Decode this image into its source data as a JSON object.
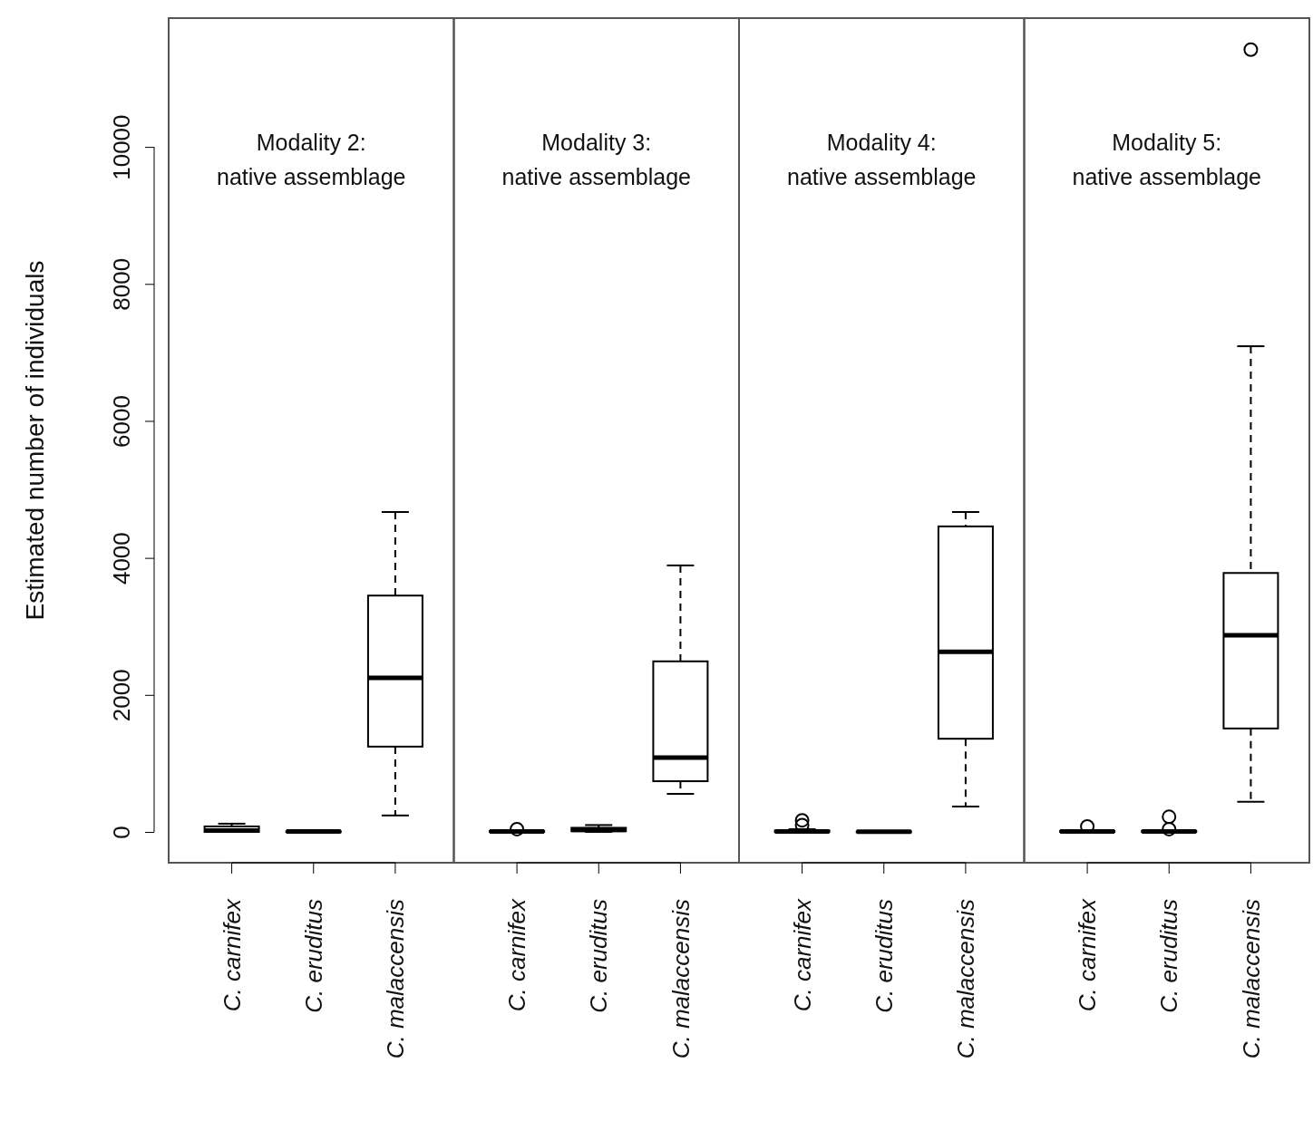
{
  "chart_data": [
    {
      "type": "box",
      "ylabel": "Estimated number of individuals",
      "categories": [
        "C. carnifex",
        "C. eruditus",
        "C. malaccensis"
      ],
      "ylim": [
        -450,
        11880
      ],
      "yticks": [
        0,
        2000,
        4000,
        6000,
        8000,
        10000
      ],
      "annotations": [
        "Modality 2:",
        "native assemblage"
      ],
      "boxes": [
        {
          "low": 0,
          "q1": 0,
          "median": 20,
          "q3": 80,
          "high": 120
        },
        {
          "low": 0,
          "q1": 0,
          "median": 5,
          "q3": 10,
          "high": 15
        },
        {
          "low": 240,
          "q1": 1245,
          "median": 2250,
          "q3": 3450,
          "high": 4670
        }
      ]
    },
    {
      "type": "box",
      "categories": [
        "C. carnifex",
        "C. eruditus",
        "C. malaccensis"
      ],
      "ylim": [
        -450,
        11880
      ],
      "tick_labels": "x",
      "annotations": [
        "Modality 3:",
        "native assemblage"
      ],
      "boxes": [
        {
          "low": 0,
          "q1": 0,
          "median": 5,
          "q3": 15,
          "high": 20,
          "outliers": [
            40
          ]
        },
        {
          "low": 0,
          "q1": 10,
          "median": 30,
          "q3": 60,
          "high": 100
        },
        {
          "low": 555,
          "q1": 740,
          "median": 1085,
          "q3": 2490,
          "high": 3890
        }
      ]
    },
    {
      "type": "box",
      "categories": [
        "C. carnifex",
        "C. eruditus",
        "C. malaccensis"
      ],
      "ylim": [
        -450,
        11880
      ],
      "tick_labels": "x",
      "annotations": [
        "Modality 4:",
        "native assemblage"
      ],
      "boxes": [
        {
          "low": 0,
          "q1": 0,
          "median": 5,
          "q3": 20,
          "high": 40,
          "outliers": [
            100,
            170
          ]
        },
        {
          "low": 0,
          "q1": 0,
          "median": 3,
          "q3": 8,
          "high": 12
        },
        {
          "low": 370,
          "q1": 1360,
          "median": 2630,
          "q3": 4460,
          "high": 4670
        }
      ]
    },
    {
      "type": "box",
      "categories": [
        "C. carnifex",
        "C. eruditus",
        "C. malaccensis"
      ],
      "ylim": [
        -450,
        11880
      ],
      "tick_labels": "x",
      "annotations": [
        "Modality 5:",
        "native assemblage"
      ],
      "boxes": [
        {
          "low": 0,
          "q1": 0,
          "median": 5,
          "q3": 15,
          "high": 25,
          "outliers": [
            80
          ]
        },
        {
          "low": 0,
          "q1": 0,
          "median": 5,
          "q3": 15,
          "high": 25,
          "outliers": [
            40,
            220
          ]
        },
        {
          "low": 440,
          "q1": 1510,
          "median": 2870,
          "q3": 3780,
          "high": 7090,
          "outliers": [
            11420
          ]
        }
      ]
    }
  ]
}
